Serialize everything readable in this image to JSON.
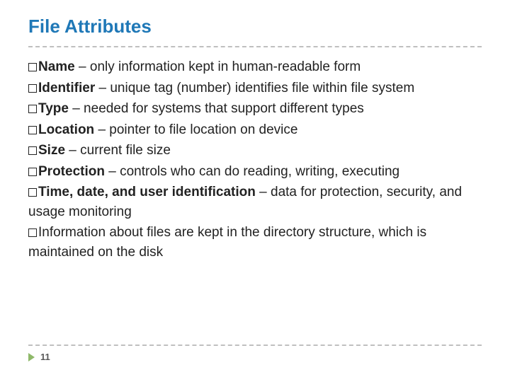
{
  "colors": {
    "title": "#1f78b7",
    "text": "#222222",
    "divider": "#bfbfbf",
    "arrow": "#8fb96a",
    "page_num": "#595959",
    "background": "#ffffff"
  },
  "typography": {
    "title_fontsize": 26,
    "body_fontsize": 19,
    "footer_fontsize": 13,
    "font_family": "Arial"
  },
  "slide": {
    "title": "File Attributes",
    "bullets": [
      {
        "term": "Name",
        "desc": " – only information kept in human-readable form"
      },
      {
        "term": "Identifier",
        "desc": " – unique tag (number) identifies file within file system"
      },
      {
        "term": "Type",
        "desc": " – needed for systems that support different types"
      },
      {
        "term": "Location",
        "desc": " – pointer to file location on device"
      },
      {
        "term": "Size",
        "desc": " – current file size"
      },
      {
        "term": "Protection",
        "desc": " – controls who can do reading, writing, executing"
      },
      {
        "term": "Time, date, and user identification",
        "desc": " – data for protection, security, and usage monitoring"
      },
      {
        "term": "",
        "desc": "Information about files are kept in the directory structure, which is maintained on the disk"
      }
    ],
    "page_number": "11"
  }
}
